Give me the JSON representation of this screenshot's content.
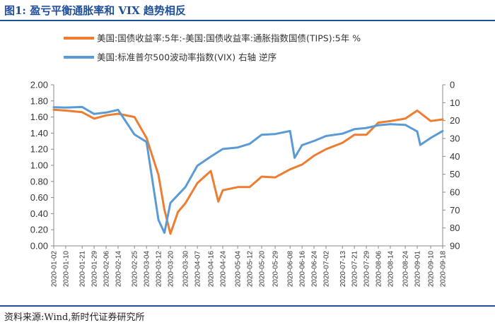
{
  "header": {
    "title": "图1:   盈亏平衡通胀率和 VIX 趋势相反"
  },
  "footer": {
    "source": "资料来源:Wind,新时代证券研究所"
  },
  "chart_data": {
    "type": "line",
    "title": "",
    "xlabel": "",
    "ylabel": "",
    "legend_position": "top",
    "grid": false,
    "x_tick_labels": [
      "2020-01-02",
      "2020-01-10",
      "2020-01-21",
      "2020-01-29",
      "2020-02-06",
      "2020-02-14",
      "2020-02-25",
      "2020-03-04",
      "2020-03-12",
      "2020-03-20",
      "2020-03-30",
      "2020-04-07",
      "2020-04-16",
      "2020-04-24",
      "2020-05-04",
      "2020-05-12",
      "2020-05-20",
      "2020-05-29",
      "2020-06-08",
      "2020-06-16",
      "2020-06-24",
      "2020-07-02",
      "2020-07-13",
      "2020-07-21",
      "2020-07-29",
      "2020-08-06",
      "2020-08-14",
      "2020-08-24",
      "2020-09-01",
      "2020-09-10",
      "2020-09-18"
    ],
    "y_left": {
      "ylim": [
        0,
        2
      ],
      "ticks": [
        "0.00",
        "0.20",
        "0.40",
        "0.60",
        "0.80",
        "1.00",
        "1.20",
        "1.40",
        "1.60",
        "1.80",
        "2.00"
      ]
    },
    "y_right": {
      "ylim": [
        0,
        90
      ],
      "inverted": true,
      "ticks": [
        "0",
        "10",
        "20",
        "30",
        "40",
        "50",
        "60",
        "70",
        "80",
        "90"
      ]
    },
    "series": [
      {
        "name": "美国:国债收益率:5年:-美国:国债收益率:通胀指数国债(TIPS):5年 %",
        "axis": "left",
        "color": "#ed7d31",
        "points": [
          [
            "2020-01-02",
            1.69
          ],
          [
            "2020-01-10",
            1.68
          ],
          [
            "2020-01-21",
            1.66
          ],
          [
            "2020-01-29",
            1.58
          ],
          [
            "2020-02-06",
            1.62
          ],
          [
            "2020-02-14",
            1.64
          ],
          [
            "2020-02-25",
            1.6
          ],
          [
            "2020-03-04",
            1.34
          ],
          [
            "2020-03-12",
            0.88
          ],
          [
            "2020-03-16",
            0.45
          ],
          [
            "2020-03-20",
            0.15
          ],
          [
            "2020-03-25",
            0.42
          ],
          [
            "2020-03-30",
            0.53
          ],
          [
            "2020-04-07",
            0.78
          ],
          [
            "2020-04-16",
            0.93
          ],
          [
            "2020-04-21",
            0.55
          ],
          [
            "2020-04-24",
            0.69
          ],
          [
            "2020-05-04",
            0.73
          ],
          [
            "2020-05-12",
            0.73
          ],
          [
            "2020-05-20",
            0.86
          ],
          [
            "2020-05-29",
            0.85
          ],
          [
            "2020-06-08",
            0.95
          ],
          [
            "2020-06-16",
            1.01
          ],
          [
            "2020-06-24",
            1.12
          ],
          [
            "2020-07-02",
            1.2
          ],
          [
            "2020-07-13",
            1.28
          ],
          [
            "2020-07-21",
            1.38
          ],
          [
            "2020-07-29",
            1.38
          ],
          [
            "2020-08-06",
            1.53
          ],
          [
            "2020-08-14",
            1.55
          ],
          [
            "2020-08-24",
            1.58
          ],
          [
            "2020-09-01",
            1.68
          ],
          [
            "2020-09-10",
            1.55
          ],
          [
            "2020-09-18",
            1.57
          ]
        ]
      },
      {
        "name": "美国:标准普尔500波动率指数(VIX) 右轴 逆序",
        "axis": "right",
        "color": "#5b9bd5",
        "points": [
          [
            "2020-01-02",
            12.5
          ],
          [
            "2020-01-10",
            12.7
          ],
          [
            "2020-01-21",
            12.4
          ],
          [
            "2020-01-29",
            16.3
          ],
          [
            "2020-02-06",
            15.5
          ],
          [
            "2020-02-14",
            14.0
          ],
          [
            "2020-02-25",
            27.8
          ],
          [
            "2020-03-04",
            31.9
          ],
          [
            "2020-03-12",
            75.5
          ],
          [
            "2020-03-16",
            82.7
          ],
          [
            "2020-03-20",
            66.0
          ],
          [
            "2020-03-30",
            57.1
          ],
          [
            "2020-04-07",
            45.2
          ],
          [
            "2020-04-16",
            40.1
          ],
          [
            "2020-04-24",
            35.9
          ],
          [
            "2020-05-04",
            35.0
          ],
          [
            "2020-05-12",
            33.0
          ],
          [
            "2020-05-20",
            27.9
          ],
          [
            "2020-05-29",
            27.5
          ],
          [
            "2020-06-08",
            25.8
          ],
          [
            "2020-06-11",
            40.8
          ],
          [
            "2020-06-16",
            33.7
          ],
          [
            "2020-06-24",
            31.4
          ],
          [
            "2020-07-02",
            28.6
          ],
          [
            "2020-07-13",
            27.3
          ],
          [
            "2020-07-21",
            24.8
          ],
          [
            "2020-07-29",
            24.1
          ],
          [
            "2020-08-06",
            22.6
          ],
          [
            "2020-08-14",
            22.0
          ],
          [
            "2020-08-24",
            22.4
          ],
          [
            "2020-09-01",
            26.1
          ],
          [
            "2020-09-03",
            33.6
          ],
          [
            "2020-09-10",
            29.7
          ],
          [
            "2020-09-18",
            25.8
          ]
        ]
      }
    ]
  }
}
